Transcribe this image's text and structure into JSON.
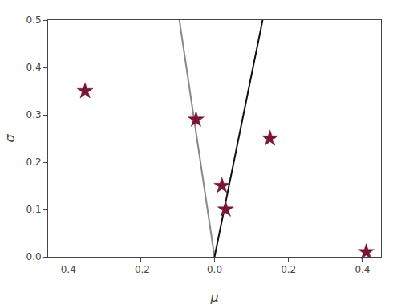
{
  "chart_data": {
    "type": "scatter",
    "xlabel": "μ",
    "ylabel": "σ",
    "xlim": [
      -0.45,
      0.45
    ],
    "ylim": [
      0.0,
      0.5
    ],
    "xticks": [
      -0.4,
      -0.2,
      {
        "value": 0.0,
        "label": "0.0"
      },
      0.2,
      0.4
    ],
    "yticks": [
      {
        "value": 0.0,
        "label": "0.0"
      },
      0.1,
      0.2,
      0.3,
      0.4,
      0.5
    ],
    "grid": false,
    "series": [
      {
        "type": "line",
        "color": "#888888",
        "x": [
          -0.095,
          0.0
        ],
        "values": [
          0.5,
          0.0
        ]
      },
      {
        "type": "line",
        "color": "#111111",
        "x": [
          0.0,
          0.13
        ],
        "values": [
          0.0,
          0.5
        ]
      },
      {
        "type": "scatter",
        "marker": "star",
        "color": "#7B1535",
        "x": [
          -0.35,
          -0.05,
          0.02,
          0.03,
          0.15,
          0.41
        ],
        "values": [
          0.35,
          0.29,
          0.15,
          0.1,
          0.25,
          0.01
        ]
      }
    ]
  }
}
